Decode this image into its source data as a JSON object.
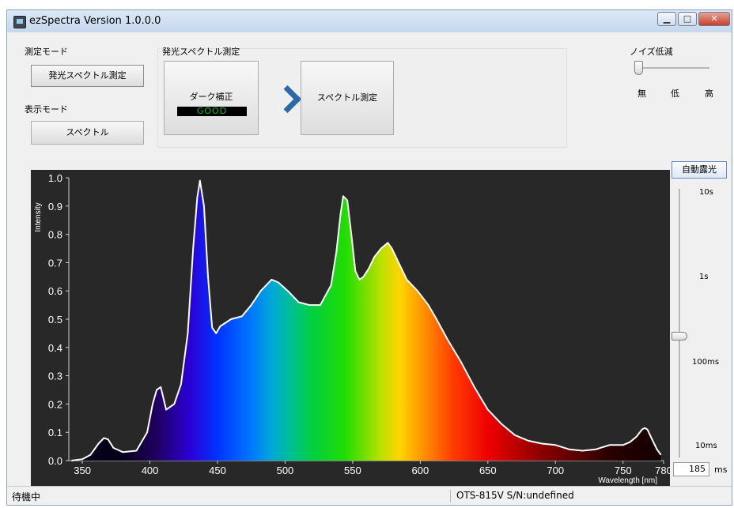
{
  "window": {
    "title": "ezSpectra Version 1.0.0.0",
    "min_label": "▁",
    "max_label": "□",
    "close_label": "✕"
  },
  "left_panel": {
    "measure_mode_label": "測定モード",
    "measure_mode_button": "発光スペクトル測定",
    "display_mode_label": "表示モード",
    "display_mode_button": "スペクトル"
  },
  "emission_group": {
    "label": "発光スペクトル測定",
    "dark_button": "ダーク補正",
    "dark_status": "GOOD",
    "measure_button": "スペクトル測定"
  },
  "noise": {
    "label": "ノイズ低減",
    "levels": [
      "無",
      "低",
      "高"
    ],
    "selected": "無"
  },
  "exposure": {
    "auto_button": "自動露光",
    "ticks": [
      "10s",
      "1s",
      "100ms",
      "10ms"
    ],
    "value": "185",
    "unit": "ms"
  },
  "status": {
    "left": "待機中",
    "right": "OTS-815V  S/N:undefined"
  },
  "colors": {
    "chart_bg": "#282828",
    "curve": "#ffffff",
    "arrow": "#2b6aa7",
    "good": "#1db81d"
  },
  "chart_data": {
    "type": "area",
    "ylabel": "Intensity",
    "xlabel": "Wavelength [nm]",
    "xlim": [
      340,
      780
    ],
    "ylim": [
      0,
      1.0
    ],
    "x_ticks": [
      350,
      400,
      450,
      500,
      550,
      600,
      650,
      700,
      750,
      780
    ],
    "y_ticks": [
      0.0,
      0.1,
      0.2,
      0.3,
      0.4,
      0.5,
      0.6,
      0.7,
      0.8,
      0.9,
      1.0
    ],
    "grid": false,
    "series": [
      {
        "x": [
          342,
          350,
          356,
          362,
          366,
          369,
          373,
          380,
          390,
          398,
          402,
          405,
          408,
          412,
          418,
          423,
          428,
          432,
          435,
          437,
          440,
          443,
          446,
          449,
          452,
          460,
          468,
          475,
          482,
          490,
          495,
          502,
          510,
          518,
          526,
          534,
          538,
          541,
          543,
          546,
          549,
          552,
          555,
          558,
          562,
          566,
          571,
          576,
          579,
          584,
          590,
          598,
          606,
          612,
          620,
          630,
          640,
          650,
          660,
          670,
          680,
          690,
          700,
          710,
          720,
          730,
          740,
          750,
          755,
          760,
          764,
          766,
          768,
          771,
          775,
          778
        ],
        "y": [
          0.0,
          0.005,
          0.02,
          0.06,
          0.08,
          0.075,
          0.045,
          0.03,
          0.035,
          0.1,
          0.2,
          0.25,
          0.26,
          0.18,
          0.2,
          0.27,
          0.45,
          0.75,
          0.93,
          0.99,
          0.9,
          0.65,
          0.47,
          0.45,
          0.475,
          0.5,
          0.51,
          0.55,
          0.6,
          0.64,
          0.63,
          0.6,
          0.56,
          0.55,
          0.55,
          0.62,
          0.74,
          0.87,
          0.935,
          0.92,
          0.8,
          0.67,
          0.64,
          0.65,
          0.68,
          0.72,
          0.75,
          0.77,
          0.75,
          0.7,
          0.64,
          0.6,
          0.55,
          0.5,
          0.43,
          0.35,
          0.26,
          0.18,
          0.13,
          0.09,
          0.07,
          0.06,
          0.055,
          0.04,
          0.035,
          0.04,
          0.055,
          0.055,
          0.065,
          0.085,
          0.11,
          0.115,
          0.11,
          0.08,
          0.04,
          0.02
        ]
      }
    ]
  }
}
